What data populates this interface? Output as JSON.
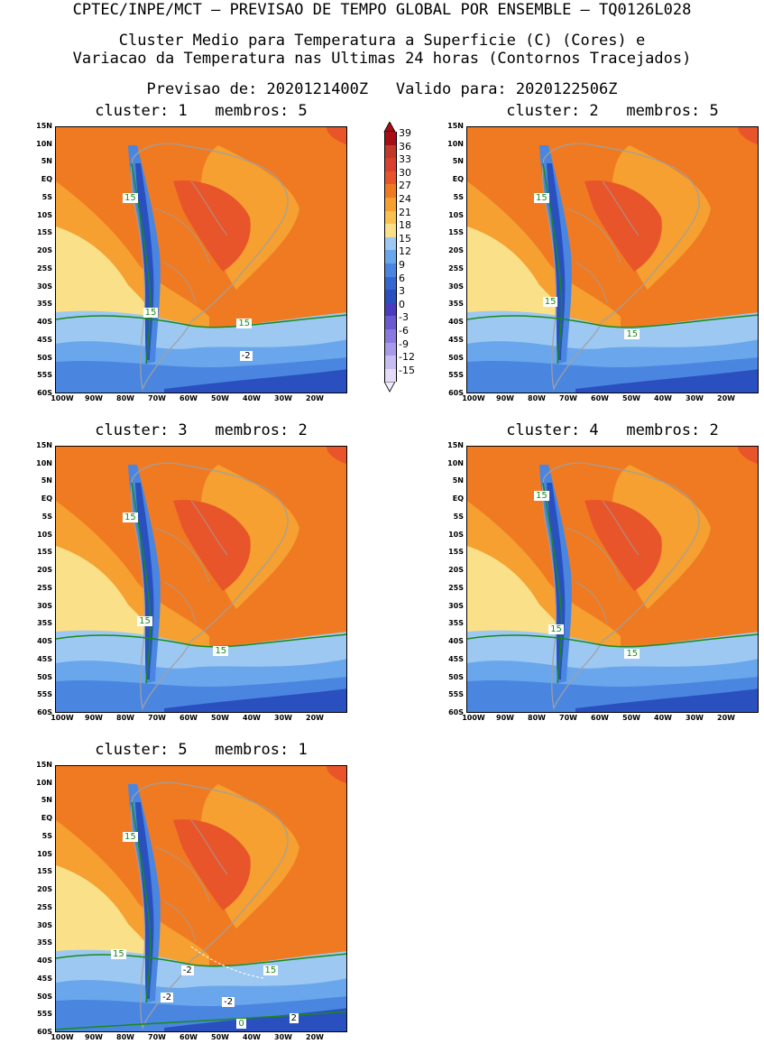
{
  "header": {
    "line1": "CPTEC/INPE/MCT – PREVISAO DE TEMPO GLOBAL POR ENSEMBLE – TQ0126L028",
    "line2": "Cluster Medio para Temperatura a Superficie (C) (Cores) e",
    "line3": "Variacao da Temperatura nas Ultimas 24 horas (Contornos Tracejados)",
    "line4": "Previsao de: 2020121400Z   Valido para: 2020122506Z"
  },
  "axes": {
    "y_labels": [
      "15N",
      "10N",
      "5N",
      "EQ",
      "5S",
      "10S",
      "15S",
      "20S",
      "25S",
      "30S",
      "35S",
      "40S",
      "45S",
      "50S",
      "55S",
      "60S"
    ],
    "x_labels": [
      "100W",
      "90W",
      "80W",
      "70W",
      "60W",
      "50W",
      "40W",
      "30W",
      "20W"
    ]
  },
  "colorbar": {
    "labels": [
      "39",
      "36",
      "33",
      "30",
      "27",
      "24",
      "21",
      "18",
      "15",
      "12",
      "9",
      "6",
      "3",
      "0",
      "-3",
      "-6",
      "-9",
      "-12",
      "-15"
    ],
    "colors": [
      "#a50f15",
      "#c0392b",
      "#d94030",
      "#e8552a",
      "#f07a22",
      "#f5a030",
      "#f8c050",
      "#fbe08a",
      "#9cc8f2",
      "#6aa6ec",
      "#4a86e0",
      "#3468d0",
      "#2a50c0",
      "#4a3cc0",
      "#6a5ad0",
      "#8a7ae0",
      "#a89ae8",
      "#c8bcf0",
      "#e4dcf8"
    ]
  },
  "panels": [
    {
      "title": "cluster: 1   membros: 5",
      "labels": [
        {
          "text": "15",
          "color": "green"
        },
        {
          "text": "15",
          "color": "green"
        },
        {
          "text": "15",
          "color": "green"
        },
        {
          "text": "-2",
          "color": "black"
        }
      ]
    },
    {
      "title": "cluster: 2   membros: 5",
      "labels": [
        {
          "text": "15",
          "color": "green"
        },
        {
          "text": "15",
          "color": "green"
        },
        {
          "text": "15",
          "color": "green"
        }
      ]
    },
    {
      "title": "cluster: 3   membros: 2",
      "labels": [
        {
          "text": "15",
          "color": "green"
        },
        {
          "text": "15",
          "color": "green"
        },
        {
          "text": "15",
          "color": "green"
        }
      ]
    },
    {
      "title": "cluster: 4   membros: 2",
      "labels": [
        {
          "text": "15",
          "color": "green"
        },
        {
          "text": "15",
          "color": "green"
        },
        {
          "text": "15",
          "color": "green"
        }
      ]
    },
    {
      "title": "cluster: 5   membros: 1",
      "labels": [
        {
          "text": "15",
          "color": "green"
        },
        {
          "text": "15",
          "color": "green"
        },
        {
          "text": "15",
          "color": "green"
        },
        {
          "text": "-2",
          "color": "black"
        },
        {
          "text": "-2",
          "color": "black"
        },
        {
          "text": "-2",
          "color": "black"
        },
        {
          "text": "0",
          "color": "green"
        },
        {
          "text": "2",
          "color": "black"
        }
      ]
    }
  ]
}
